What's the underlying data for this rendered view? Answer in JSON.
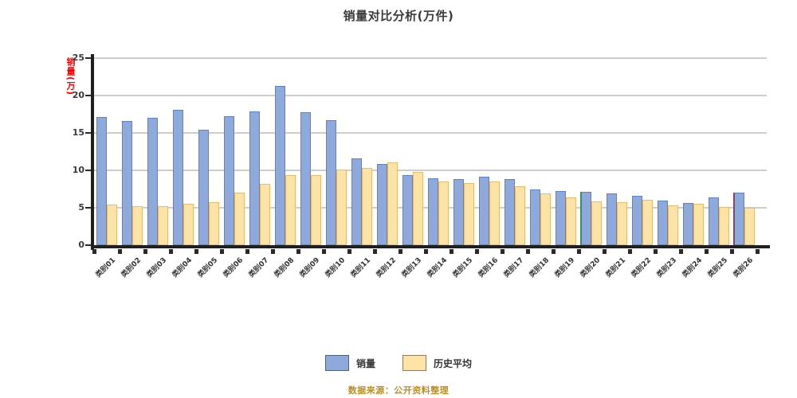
{
  "chart_data": {
    "type": "bar",
    "title": "销量对比分析(万件)",
    "y_axis_title": "销量(万)",
    "ylim": [
      0,
      25
    ],
    "yticks": [
      0,
      5,
      10,
      15,
      20,
      25
    ],
    "grid": true,
    "legend_position": "bottom",
    "categories": [
      "类别01",
      "类别02",
      "类别03",
      "类别04",
      "类别05",
      "类别06",
      "类别07",
      "类别08",
      "类别09",
      "类别10",
      "类别11",
      "类别12",
      "类别13",
      "类别14",
      "类别15",
      "类别16",
      "类别17",
      "类别18",
      "类别19",
      "类别20",
      "类别21",
      "类别22",
      "类别23",
      "类别24",
      "类别25",
      "类别26"
    ],
    "series": [
      {
        "name": "销量",
        "color": "#8ea9db",
        "border_color": "#5b84c8",
        "values": [
          17.1,
          16.6,
          17.0,
          18.1,
          15.4,
          17.2,
          17.9,
          21.3,
          17.8,
          16.7,
          11.6,
          10.9,
          9.4,
          8.9,
          8.8,
          9.1,
          8.8,
          7.5,
          7.2,
          7.1,
          6.9,
          6.6,
          6.0,
          5.6,
          6.4,
          7.0
        ]
      },
      {
        "name": "历史平均",
        "color": "#ffe2a6",
        "border_color": "#e3bc72",
        "values": [
          5.4,
          5.2,
          5.2,
          5.5,
          5.7,
          7.0,
          8.2,
          9.4,
          9.4,
          10.1,
          10.3,
          11.1,
          9.8,
          8.5,
          8.3,
          8.5,
          7.9,
          6.9,
          6.4,
          5.9,
          5.7,
          6.1,
          5.3,
          5.5,
          5.1,
          5.0
        ]
      }
    ],
    "markers": [
      {
        "name": "green-accent-line",
        "category_index": 19,
        "value": 7.1,
        "color": "#3f8f4f"
      },
      {
        "name": "maroon-accent-line",
        "category_index": 25,
        "value": 7.0,
        "color": "#8e4455"
      }
    ],
    "source_note": "数据来源：公开资料整理",
    "colors": {
      "axis": "#1f1f1f",
      "gridline": "#cdcdcd",
      "tick_text": "#3a3a3a",
      "title_text": "#3a3a3a",
      "y_axis_title_text": "#fe0000",
      "source_text": "#bd8e1e",
      "background": "#ffffff"
    }
  }
}
